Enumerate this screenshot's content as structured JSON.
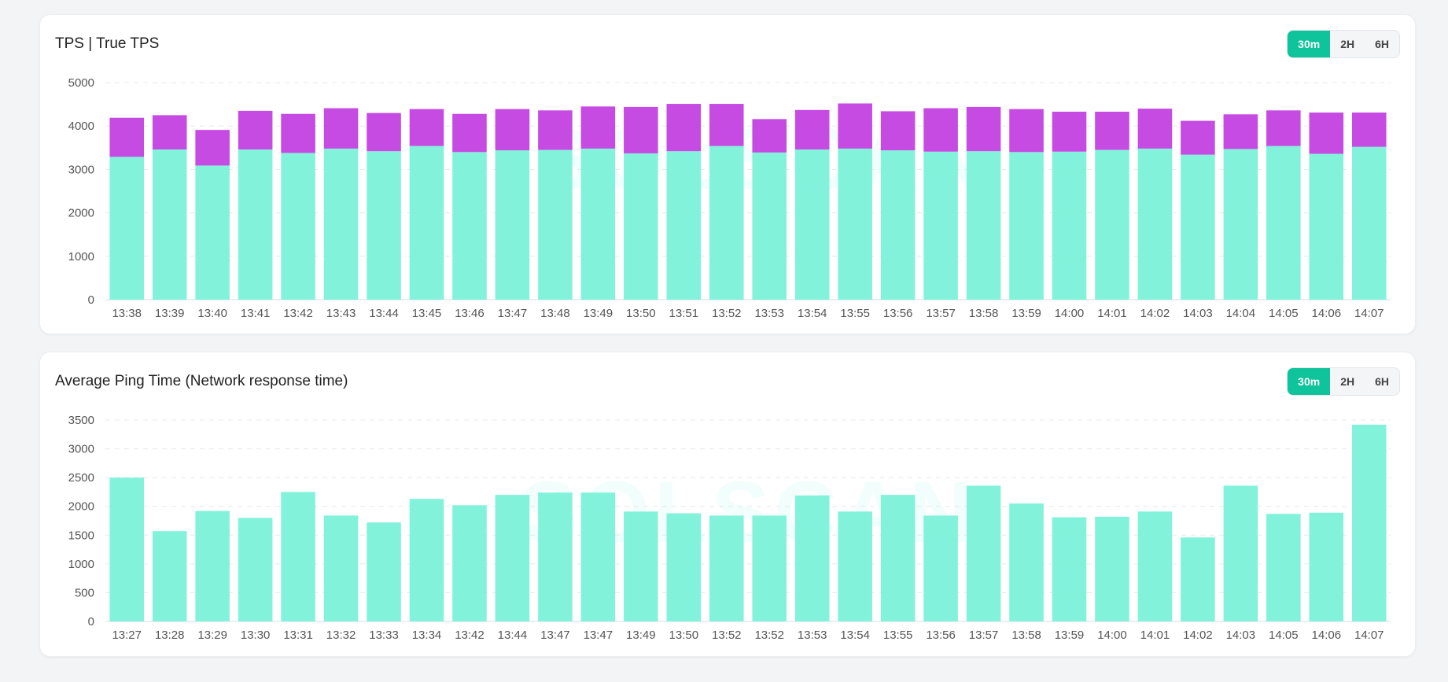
{
  "watermark": "SOLSCAN",
  "colors": {
    "true_tps": "#82f3da",
    "tps_extra": "#c64be3",
    "ping": "#82f3da",
    "accent": "#0fc39a"
  },
  "range_buttons": [
    "30m",
    "2H",
    "6H"
  ],
  "active_range": "30m",
  "chart_data": [
    {
      "type": "bar",
      "stacked": true,
      "title": "TPS | True TPS",
      "xlabel": "",
      "ylabel": "",
      "ylim": [
        0,
        5000
      ],
      "yticks": [
        0,
        1000,
        2000,
        3000,
        4000,
        5000
      ],
      "grid": true,
      "categories": [
        "13:38",
        "13:39",
        "13:40",
        "13:41",
        "13:42",
        "13:43",
        "13:44",
        "13:45",
        "13:46",
        "13:47",
        "13:48",
        "13:49",
        "13:50",
        "13:51",
        "13:52",
        "13:53",
        "13:54",
        "13:55",
        "13:56",
        "13:57",
        "13:58",
        "13:59",
        "14:00",
        "14:01",
        "14:02",
        "14:03",
        "14:04",
        "14:05",
        "14:06",
        "14:07"
      ],
      "series": [
        {
          "color": "#82f3da",
          "values": [
            3290,
            3460,
            3090,
            3460,
            3380,
            3480,
            3420,
            3540,
            3400,
            3440,
            3450,
            3480,
            3370,
            3420,
            3540,
            3390,
            3460,
            3480,
            3440,
            3410,
            3420,
            3400,
            3410,
            3450,
            3480,
            3340,
            3470,
            3540,
            3360,
            3520
          ]
        },
        {
          "color": "#c64be3",
          "values": [
            900,
            790,
            820,
            890,
            900,
            930,
            880,
            850,
            880,
            950,
            910,
            970,
            1070,
            1090,
            970,
            770,
            910,
            1040,
            900,
            1000,
            1020,
            990,
            920,
            880,
            920,
            780,
            800,
            820,
            950,
            790
          ]
        }
      ]
    },
    {
      "type": "bar",
      "title": "Average Ping Time (Network response time)",
      "xlabel": "",
      "ylabel": "",
      "ylim": [
        0,
        3500
      ],
      "yticks": [
        0,
        500,
        1000,
        1500,
        2000,
        2500,
        3000,
        3500
      ],
      "grid": true,
      "categories": [
        "13:27",
        "13:28",
        "13:29",
        "13:30",
        "13:31",
        "13:32",
        "13:33",
        "13:34",
        "13:42",
        "13:44",
        "13:47",
        "13:47",
        "13:49",
        "13:50",
        "13:52",
        "13:52",
        "13:53",
        "13:54",
        "13:55",
        "13:56",
        "13:57",
        "13:58",
        "13:59",
        "14:00",
        "14:01",
        "14:02",
        "14:03",
        "14:05",
        "14:06",
        "14:07"
      ],
      "series": [
        {
          "color": "#82f3da",
          "values": [
            2500,
            1570,
            1920,
            1800,
            2250,
            1840,
            1720,
            2130,
            2020,
            2200,
            2240,
            2240,
            1910,
            1880,
            1840,
            1840,
            2190,
            1910,
            2200,
            1840,
            2360,
            2050,
            1810,
            1820,
            1910,
            1460,
            2360,
            1870,
            1890,
            3420
          ]
        }
      ]
    }
  ]
}
